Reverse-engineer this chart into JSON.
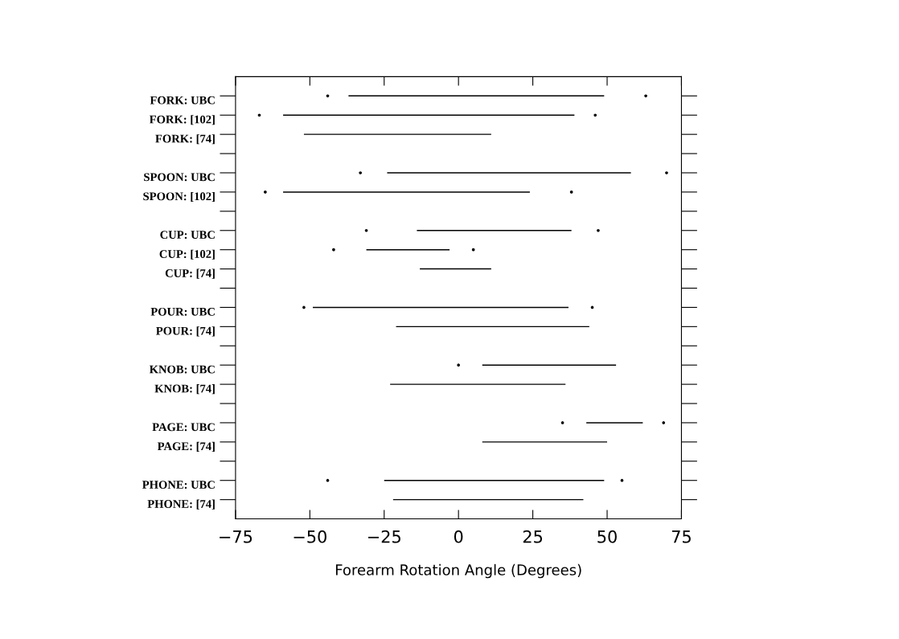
{
  "chart_data": {
    "type": "bar",
    "orientation": "horizontal",
    "xlabel": "Forearm Rotation Angle (Degrees)",
    "categories": [
      "FORK: UBC",
      "FORK: [102]",
      "FORK: [74]",
      null,
      "SPOON: UBC",
      "SPOON: [102]",
      null,
      "CUP: UBC",
      "CUP: [102]",
      "CUP: [74]",
      null,
      "POUR: UBC",
      "POUR: [74]",
      null,
      "KNOB: UBC",
      "KNOB: [74]",
      null,
      "PAGE: UBC",
      "PAGE: [74]",
      null,
      "PHONE: UBC",
      "PHONE: [74]"
    ],
    "series": [
      {
        "color": "#000000",
        "base": [
          -37,
          -59,
          -52,
          null,
          -24,
          -59,
          null,
          -14,
          -31,
          -13,
          null,
          -49,
          -21,
          null,
          8,
          -23,
          null,
          43,
          8,
          null,
          -25,
          -22
        ],
        "values": [
          86,
          98,
          63,
          null,
          82,
          83,
          null,
          52,
          28,
          24,
          null,
          86,
          65,
          null,
          45,
          59,
          null,
          19,
          42,
          null,
          74,
          64
        ]
      },
      {
        "type": "scatter",
        "color": "#000000",
        "values": [
          -44,
          -67,
          null,
          null,
          -33,
          -65,
          null,
          -31,
          -42,
          null,
          null,
          -52,
          null,
          null,
          0,
          null,
          null,
          35,
          null,
          null,
          -44,
          null
        ]
      },
      {
        "type": "scatter",
        "color": "#000000",
        "values": [
          63,
          46,
          null,
          null,
          70,
          38,
          null,
          47,
          5,
          null,
          null,
          45,
          null,
          null,
          null,
          null,
          null,
          69,
          null,
          null,
          55,
          null
        ]
      }
    ],
    "xlim": [
      -75,
      75
    ],
    "xticks": [
      -75,
      -50,
      -25,
      0,
      25,
      50,
      75
    ],
    "grid": false,
    "marker": "circle"
  }
}
